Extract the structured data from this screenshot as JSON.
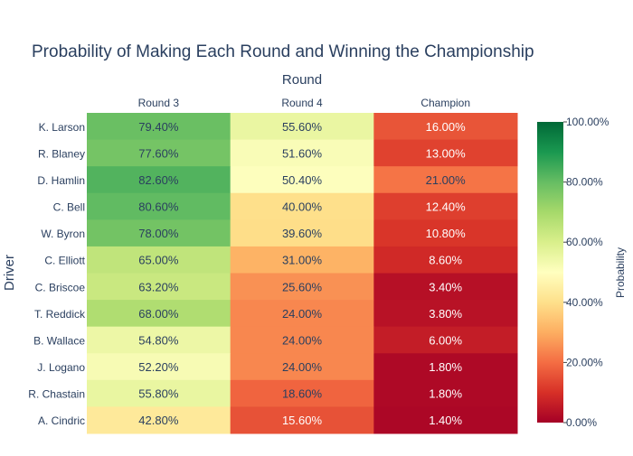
{
  "chart_data": {
    "type": "heatmap",
    "title": "Probability of Making Each Round and Winning the Championship",
    "xlabel": "Round",
    "ylabel": "Driver",
    "x_categories": [
      "Round 3",
      "Round 4",
      "Champion"
    ],
    "y_categories": [
      "K. Larson",
      "R. Blaney",
      "D. Hamlin",
      "C. Bell",
      "W. Byron",
      "C. Elliott",
      "C. Briscoe",
      "T. Reddick",
      "B. Wallace",
      "J. Logano",
      "R. Chastain",
      "A. Cindric"
    ],
    "values": [
      [
        79.4,
        55.6,
        16.0
      ],
      [
        77.6,
        51.6,
        13.0
      ],
      [
        82.6,
        50.4,
        21.0
      ],
      [
        80.6,
        40.0,
        12.4
      ],
      [
        78.0,
        39.6,
        10.8
      ],
      [
        65.0,
        31.0,
        8.6
      ],
      [
        63.2,
        25.6,
        3.4
      ],
      [
        68.0,
        24.0,
        3.8
      ],
      [
        54.8,
        24.0,
        6.0
      ],
      [
        52.2,
        24.0,
        1.8
      ],
      [
        55.8,
        18.6,
        1.8
      ],
      [
        42.8,
        15.6,
        1.4
      ]
    ],
    "value_suffix": "%",
    "zlim": [
      0,
      100
    ],
    "colorscale": "RdYlGn",
    "colorbar": {
      "title": "Probability",
      "ticks": [
        0,
        20,
        40,
        60,
        80,
        100
      ],
      "tick_labels": [
        "0.00%",
        "20.00%",
        "40.00%",
        "60.00%",
        "80.00%",
        "100.00%"
      ]
    },
    "colors": {
      "text_dark": "#2a3f5f",
      "text_light": "#ffffff",
      "scale": [
        "#a50026",
        "#d73027",
        "#f46d43",
        "#fdae61",
        "#fee08b",
        "#ffffbf",
        "#d9ef8b",
        "#a6d96a",
        "#66bd63",
        "#1a9850",
        "#006837"
      ]
    }
  }
}
